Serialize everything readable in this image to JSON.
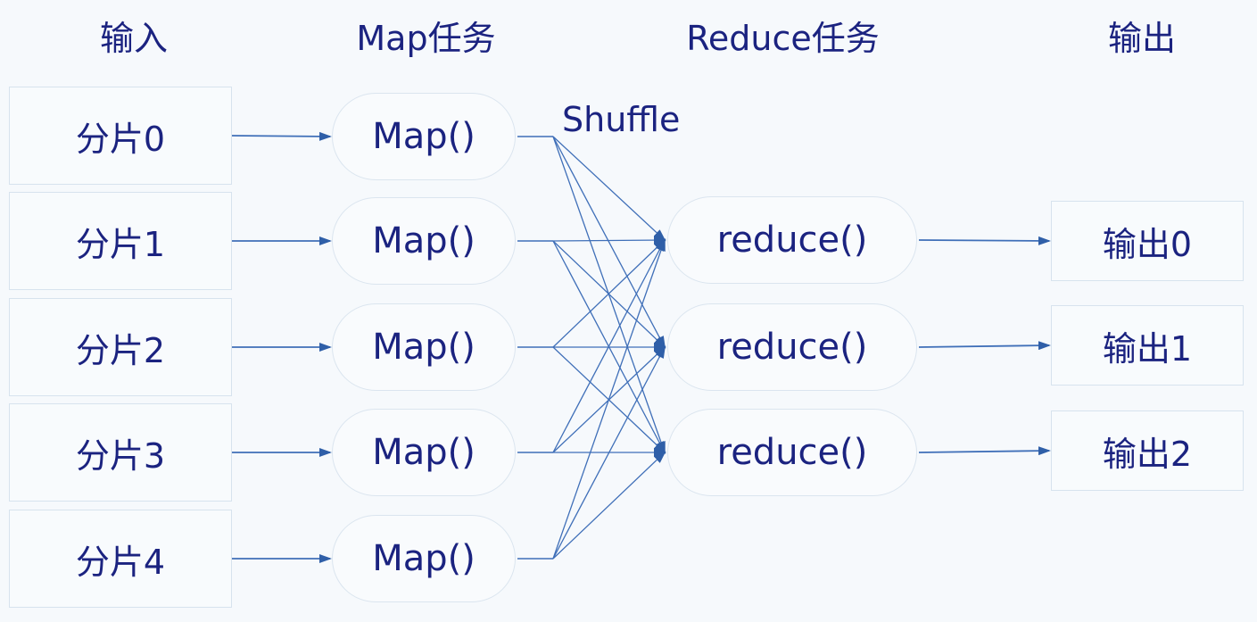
{
  "headers": {
    "input": "输入",
    "map": "Map任务",
    "reduce": "Reduce任务",
    "output": "输出"
  },
  "inputs": [
    "分片0",
    "分片1",
    "分片2",
    "分片3",
    "分片4"
  ],
  "maps": [
    "Map()",
    "Map()",
    "Map()",
    "Map()",
    "Map()"
  ],
  "shuffle_label": "Shuffle",
  "reduces": [
    "reduce()",
    "reduce()",
    "reduce()"
  ],
  "outputs": [
    "输出0",
    "输出1",
    "输出2"
  ],
  "colors": {
    "line": "#3f6fb8",
    "arrow": "#2f5fa8",
    "text": "#1b2380",
    "background": "#f6f9fc"
  }
}
